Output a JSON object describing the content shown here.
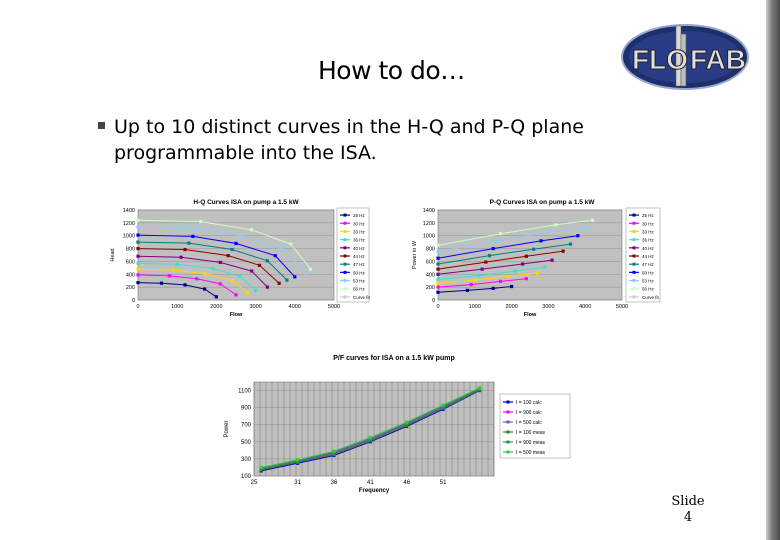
{
  "slide": {
    "title": "How to do…",
    "bullet": "Up to 10 distinct curves in the H-Q and P-Q plane programmable into the ISA.",
    "logo_text_left": "FLO",
    "logo_text_right": "FAB",
    "footer_label": "Slide",
    "footer_number": "4"
  },
  "colors": {
    "plot_bg": "#c0c0c0",
    "edge": "#5a5a5a"
  },
  "chart_data": [
    {
      "type": "line",
      "title": "H-Q Curves ISA on pump a 1.5 kW",
      "xlabel": "Flow",
      "ylabel": "Head",
      "xlim": [
        0,
        5000
      ],
      "ylim": [
        0,
        1400
      ],
      "x_ticks": [
        "0",
        "1000",
        "2000",
        "3000",
        "4000",
        "5000"
      ],
      "y_ticks": [
        "0",
        "200",
        "400",
        "600",
        "800",
        "1000",
        "1200",
        "1400"
      ],
      "grid": true,
      "legend": "right",
      "series": [
        {
          "name": "25 Hz",
          "color": "#00008b",
          "points": [
            [
              0,
              270
            ],
            [
              600,
              262
            ],
            [
              1200,
              235
            ],
            [
              1700,
              170
            ],
            [
              2000,
              50
            ]
          ]
        },
        {
          "name": "30 Hz",
          "color": "#ff00ff",
          "points": [
            [
              0,
              390
            ],
            [
              800,
              375
            ],
            [
              1500,
              330
            ],
            [
              2100,
              250
            ],
            [
              2500,
              80
            ]
          ]
        },
        {
          "name": "33 Hz",
          "color": "#ffd700",
          "points": [
            [
              0,
              480
            ],
            [
              900,
              465
            ],
            [
              1700,
              410
            ],
            [
              2400,
              300
            ],
            [
              2800,
              110
            ]
          ]
        },
        {
          "name": "36 Hz",
          "color": "#40e0d0",
          "points": [
            [
              0,
              570
            ],
            [
              1000,
              555
            ],
            [
              1900,
              490
            ],
            [
              2600,
              370
            ],
            [
              3000,
              150
            ]
          ]
        },
        {
          "name": "40 Hz",
          "color": "#800080",
          "points": [
            [
              0,
              680
            ],
            [
              1100,
              665
            ],
            [
              2100,
              585
            ],
            [
              2900,
              450
            ],
            [
              3300,
              200
            ]
          ]
        },
        {
          "name": "44 Hz",
          "color": "#8b0000",
          "points": [
            [
              0,
              800
            ],
            [
              1200,
              785
            ],
            [
              2300,
              690
            ],
            [
              3100,
              540
            ],
            [
              3600,
              260
            ]
          ]
        },
        {
          "name": "47 Hz",
          "color": "#008080",
          "points": [
            [
              0,
              900
            ],
            [
              1300,
              885
            ],
            [
              2400,
              785
            ],
            [
              3300,
              610
            ],
            [
              3800,
              310
            ]
          ]
        },
        {
          "name": "50 Hz",
          "color": "#0000ff",
          "points": [
            [
              0,
              1010
            ],
            [
              1400,
              990
            ],
            [
              2500,
              880
            ],
            [
              3500,
              690
            ],
            [
              4000,
              360
            ]
          ]
        },
        {
          "name": "53 Hz",
          "color": "#87cefa",
          "points": [
            [
              0,
              1130
            ],
            [
              1500,
              1110
            ],
            [
              2700,
              990
            ],
            [
              3700,
              780
            ],
            [
              4300,
              420
            ]
          ]
        },
        {
          "name": "56 Hz",
          "color": "#c8ffc8",
          "points": [
            [
              0,
              1240
            ],
            [
              1600,
              1220
            ],
            [
              2900,
              1090
            ],
            [
              3900,
              870
            ],
            [
              4400,
              480
            ]
          ]
        }
      ],
      "extra_legend": [
        "Curve fit"
      ]
    },
    {
      "type": "line",
      "title": "P-Q Curves ISA on pump a 1.5 kW",
      "xlabel": "Flow",
      "ylabel": "Power in W",
      "xlim": [
        0,
        5000
      ],
      "ylim": [
        0,
        1400
      ],
      "x_ticks": [
        "0",
        "1000",
        "2000",
        "3000",
        "4000",
        "5000"
      ],
      "y_ticks": [
        "0",
        "200",
        "400",
        "600",
        "800",
        "1000",
        "1200",
        "1400"
      ],
      "grid": true,
      "legend": "right",
      "series": [
        {
          "name": "25 Hz",
          "color": "#00008b",
          "points": [
            [
              0,
              120
            ],
            [
              800,
              150
            ],
            [
              1500,
              180
            ],
            [
              2000,
              210
            ]
          ]
        },
        {
          "name": "30 Hz",
          "color": "#ff00ff",
          "points": [
            [
              0,
              200
            ],
            [
              900,
              240
            ],
            [
              1700,
              290
            ],
            [
              2400,
              330
            ]
          ]
        },
        {
          "name": "33 Hz",
          "color": "#ffd700",
          "points": [
            [
              0,
              260
            ],
            [
              1000,
              310
            ],
            [
              1900,
              370
            ],
            [
              2700,
              420
            ]
          ]
        },
        {
          "name": "36 Hz",
          "color": "#40e0d0",
          "points": [
            [
              0,
              320
            ],
            [
              1100,
              380
            ],
            [
              2100,
              450
            ],
            [
              2900,
              510
            ]
          ]
        },
        {
          "name": "40 Hz",
          "color": "#800080",
          "points": [
            [
              0,
              400
            ],
            [
              1200,
              480
            ],
            [
              2300,
              560
            ],
            [
              3100,
              620
            ]
          ]
        },
        {
          "name": "44 Hz",
          "color": "#8b0000",
          "points": [
            [
              0,
              480
            ],
            [
              1300,
              590
            ],
            [
              2400,
              680
            ],
            [
              3400,
              760
            ]
          ]
        },
        {
          "name": "47 Hz",
          "color": "#008080",
          "points": [
            [
              0,
              560
            ],
            [
              1400,
              690
            ],
            [
              2600,
              790
            ],
            [
              3600,
              870
            ]
          ]
        },
        {
          "name": "50 Hz",
          "color": "#0000ff",
          "points": [
            [
              0,
              650
            ],
            [
              1500,
              800
            ],
            [
              2800,
              920
            ],
            [
              3800,
              1000
            ]
          ]
        },
        {
          "name": "53 Hz",
          "color": "#87cefa",
          "points": [
            [
              0,
              750
            ],
            [
              1600,
              920
            ],
            [
              3000,
              1050
            ],
            [
              4000,
              1120
            ]
          ]
        },
        {
          "name": "56 Hz",
          "color": "#c8ffc8",
          "points": [
            [
              0,
              850
            ],
            [
              1700,
              1030
            ],
            [
              3200,
              1170
            ],
            [
              4200,
              1240
            ]
          ]
        }
      ],
      "extra_legend": [
        "Curve fit"
      ]
    },
    {
      "type": "line",
      "title": "P/F curves for ISA on a 1.5 kW pump",
      "xlabel": "Frequency",
      "ylabel": "Power",
      "xlim": [
        25,
        58
      ],
      "ylim": [
        100,
        1200
      ],
      "x_ticks": [
        "25",
        "31",
        "36",
        "41",
        "46",
        "51"
      ],
      "y_ticks": [
        "100",
        "300",
        "500",
        "700",
        "900",
        "1100"
      ],
      "grid": true,
      "legend": "right",
      "series": [
        {
          "name": "I = 100 calc",
          "color": "#0000cd",
          "points": [
            [
              26,
              160
            ],
            [
              31,
              250
            ],
            [
              36,
              340
            ],
            [
              41,
              500
            ],
            [
              46,
              680
            ],
            [
              51,
              880
            ],
            [
              56,
              1100
            ]
          ]
        },
        {
          "name": "I = 900 calc",
          "color": "#ff00ff",
          "points": [
            [
              26,
              175
            ],
            [
              31,
              265
            ],
            [
              36,
              360
            ],
            [
              41,
              520
            ],
            [
              46,
              700
            ],
            [
              51,
              900
            ],
            [
              56,
              1110
            ]
          ]
        },
        {
          "name": "I = 500 calc",
          "color": "#6a5acd",
          "points": [
            [
              26,
              190
            ],
            [
              31,
              280
            ],
            [
              36,
              380
            ],
            [
              41,
              540
            ],
            [
              46,
              720
            ],
            [
              51,
              920
            ],
            [
              56,
              1120
            ]
          ]
        },
        {
          "name": "I = 100 meas",
          "color": "#228b22",
          "points": [
            [
              26,
              170
            ],
            [
              31,
              260
            ],
            [
              36,
              350
            ],
            [
              41,
              510
            ],
            [
              46,
              690
            ],
            [
              51,
              890
            ],
            [
              56,
              1105
            ]
          ]
        },
        {
          "name": "I = 900 meas",
          "color": "#2e8b57",
          "points": [
            [
              26,
              185
            ],
            [
              31,
              275
            ],
            [
              36,
              370
            ],
            [
              41,
              530
            ],
            [
              46,
              710
            ],
            [
              51,
              910
            ],
            [
              56,
              1115
            ]
          ]
        },
        {
          "name": "I = 500 meas",
          "color": "#32cd32",
          "points": [
            [
              26,
              200
            ],
            [
              31,
              290
            ],
            [
              36,
              390
            ],
            [
              41,
              550
            ],
            [
              46,
              730
            ],
            [
              51,
              930
            ],
            [
              56,
              1130
            ]
          ]
        }
      ]
    }
  ]
}
